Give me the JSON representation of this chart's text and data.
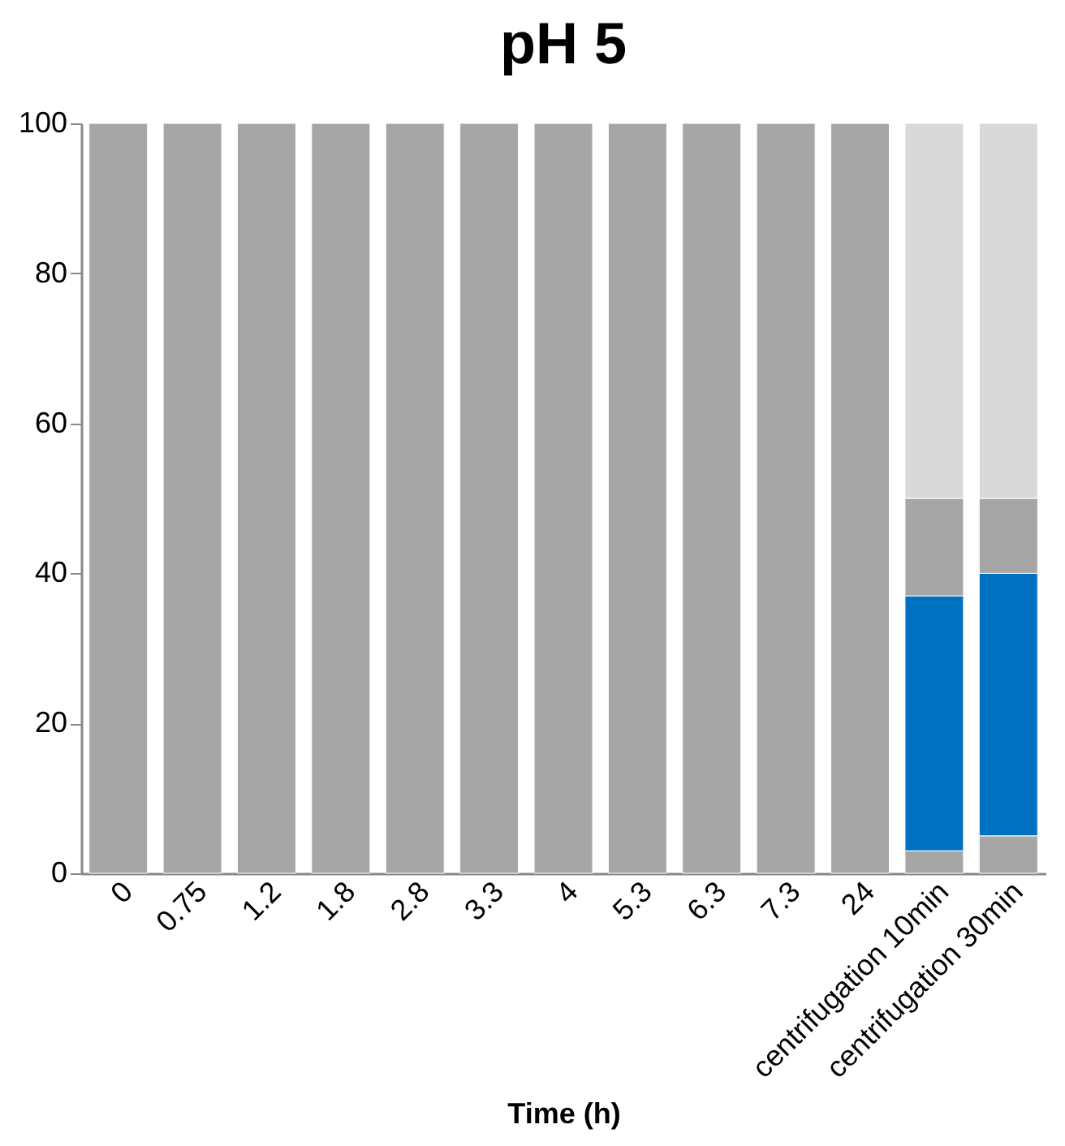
{
  "chart_data": {
    "type": "bar",
    "stacked": true,
    "title": "pH 5",
    "xlabel": "Time (h)",
    "categories": [
      "0",
      "0.75",
      "1.2",
      "1.8",
      "2.8",
      "3.3",
      "4",
      "5.3",
      "6.3",
      "7.3",
      "24",
      "centrifugation 10min",
      "centrifugation 30min"
    ],
    "series": [
      {
        "color": "#a6a6a6",
        "values": [
          100,
          100,
          100,
          100,
          100,
          100,
          100,
          100,
          100,
          100,
          100,
          3,
          5
        ]
      },
      {
        "color": "#0070c0",
        "values": [
          null,
          null,
          null,
          null,
          null,
          null,
          null,
          null,
          null,
          null,
          null,
          34,
          35
        ]
      },
      {
        "color": "#a6a6a6",
        "values": [
          null,
          null,
          null,
          null,
          null,
          null,
          null,
          null,
          null,
          null,
          null,
          13,
          10
        ]
      },
      {
        "color": "#d9d9d9",
        "values": [
          null,
          null,
          null,
          null,
          null,
          null,
          null,
          null,
          null,
          null,
          null,
          50,
          50
        ]
      }
    ],
    "ylim": [
      0,
      100
    ],
    "yticks": [
      0,
      20,
      40,
      60,
      80,
      100
    ],
    "grid": false
  }
}
